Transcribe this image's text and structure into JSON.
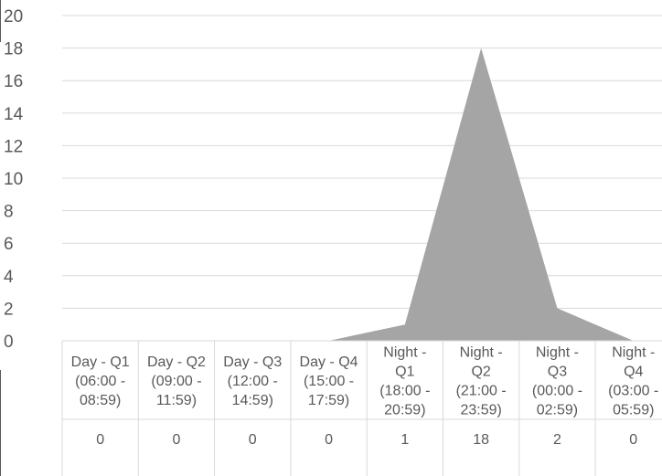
{
  "chart_data": {
    "type": "area",
    "title": "",
    "xlabel": "",
    "ylabel": "",
    "ylim": [
      0,
      20
    ],
    "yticks": [
      "0",
      "2",
      "4",
      "6",
      "8",
      "10",
      "12",
      "14",
      "16",
      "18",
      "20"
    ],
    "grid": true,
    "legend": "none",
    "categories": [
      [
        "Day - Q1",
        "(06:00 -",
        "08:59)"
      ],
      [
        "Day - Q2",
        "(09:00 -",
        "11:59)"
      ],
      [
        "Day - Q3",
        "(12:00 -",
        "14:59)"
      ],
      [
        "Day - Q4",
        "(15:00 -",
        "17:59)"
      ],
      [
        "Night -",
        "Q1",
        "(18:00 -",
        "20:59)"
      ],
      [
        "Night -",
        "Q2",
        "(21:00 -",
        "23:59)"
      ],
      [
        "Night -",
        "Q3",
        "(00:00 -",
        "02:59)"
      ],
      [
        "Night -",
        "Q4",
        "(03:00 -",
        "05:59)"
      ]
    ],
    "values": [
      0,
      0,
      0,
      0,
      1,
      18,
      2,
      0
    ],
    "value_labels": [
      "0",
      "0",
      "0",
      "0",
      "1",
      "18",
      "2",
      "0"
    ],
    "colors": {
      "area": "#a5a5a5",
      "grid": "#d9d9d9",
      "text": "#595959",
      "table_border": "#d9d9d9"
    }
  }
}
